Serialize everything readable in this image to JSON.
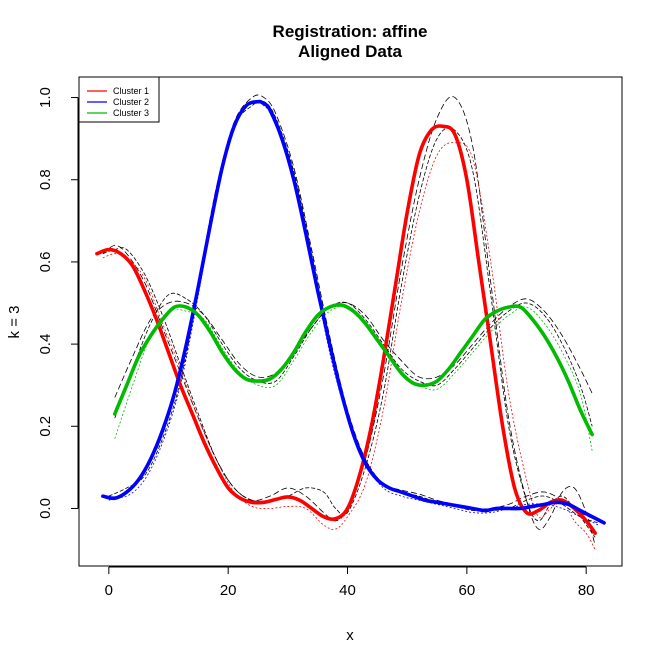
{
  "chart_data": {
    "type": "line",
    "title": "Registration: affine",
    "subtitle": "Aligned Data",
    "xlabel": "x",
    "ylabel": "k = 3",
    "xlim": [
      -5,
      86
    ],
    "ylim": [
      -0.14,
      1.05
    ],
    "xticks": [
      0,
      20,
      40,
      60,
      80
    ],
    "yticks": [
      0.0,
      0.2,
      0.4,
      0.6,
      0.8,
      1.0
    ],
    "xtick_labels": [
      "0",
      "20",
      "40",
      "60",
      "80"
    ],
    "ytick_labels": [
      "0.0",
      "0.2",
      "0.4",
      "0.6",
      "0.8",
      "1.0"
    ],
    "grid": false,
    "legend_position": "top-left",
    "series": [
      {
        "name": "Cluster 1",
        "color": "#ff0000",
        "mean": {
          "x": [
            -2,
            0,
            2,
            4,
            6,
            8,
            10,
            12,
            14,
            16,
            18,
            20,
            22,
            24,
            26,
            28,
            30,
            32,
            34,
            36,
            38,
            40,
            42,
            44,
            46,
            48,
            50,
            52,
            54,
            56,
            58,
            60,
            62,
            64,
            66,
            68,
            70,
            72,
            74,
            76,
            78,
            80,
            81.5
          ],
          "y": [
            0.62,
            0.63,
            0.62,
            0.59,
            0.53,
            0.46,
            0.38,
            0.3,
            0.23,
            0.16,
            0.1,
            0.05,
            0.025,
            0.015,
            0.015,
            0.022,
            0.028,
            0.02,
            0.0,
            -0.02,
            -0.025,
            0.0,
            0.08,
            0.2,
            0.36,
            0.54,
            0.72,
            0.86,
            0.92,
            0.93,
            0.91,
            0.8,
            0.6,
            0.4,
            0.2,
            0.05,
            -0.01,
            -0.005,
            0.015,
            0.02,
            0.0,
            -0.03,
            -0.06
          ]
        },
        "members": [
          {
            "x": [
              -1,
              1,
              3,
              6,
              9,
              12,
              15,
              18,
              21,
              24,
              27,
              30,
              33,
              36,
              38,
              40,
              43,
              46,
              49,
              52,
              55,
              58,
              61,
              64,
              67,
              70,
              72,
              74,
              76,
              78,
              80,
              81.5
            ],
            "y": [
              0.62,
              0.64,
              0.62,
              0.55,
              0.44,
              0.33,
              0.22,
              0.12,
              0.05,
              0.02,
              0.03,
              0.05,
              0.03,
              -0.01,
              -0.03,
              0.0,
              0.12,
              0.32,
              0.58,
              0.8,
              0.95,
              1.0,
              0.88,
              0.55,
              0.22,
              0.02,
              -0.05,
              -0.02,
              0.04,
              0.05,
              -0.01,
              -0.09
            ]
          },
          {
            "x": [
              -1,
              1,
              3,
              6,
              9,
              12,
              15,
              18,
              21,
              24,
              27,
              30,
              33,
              36,
              38,
              40,
              43,
              46,
              49,
              52,
              55,
              58,
              61,
              64,
              67,
              70,
              72,
              74,
              76,
              78,
              80,
              81.5
            ],
            "y": [
              0.61,
              0.62,
              0.61,
              0.56,
              0.45,
              0.34,
              0.22,
              0.12,
              0.04,
              0.005,
              0.0,
              0.005,
              0.0,
              -0.04,
              -0.05,
              -0.02,
              0.06,
              0.24,
              0.5,
              0.72,
              0.86,
              0.89,
              0.85,
              0.6,
              0.28,
              0.07,
              -0.02,
              0.0,
              0.02,
              -0.03,
              -0.06,
              -0.1
            ]
          },
          {
            "x": [
              -1,
              1,
              3,
              6,
              9,
              12,
              15,
              18,
              21,
              24,
              27,
              30,
              33,
              36,
              38,
              40,
              43,
              46,
              49,
              52,
              55,
              58,
              61,
              64,
              67,
              70,
              72,
              74,
              76,
              78,
              80,
              81.5
            ],
            "y": [
              0.62,
              0.63,
              0.63,
              0.57,
              0.47,
              0.35,
              0.23,
              0.12,
              0.05,
              0.02,
              0.02,
              0.03,
              0.05,
              0.04,
              0.0,
              -0.01,
              0.1,
              0.28,
              0.54,
              0.76,
              0.9,
              0.92,
              0.82,
              0.52,
              0.2,
              0.02,
              -0.03,
              0.01,
              0.03,
              0.0,
              -0.04,
              -0.07
            ]
          }
        ]
      },
      {
        "name": "Cluster 2",
        "color": "#0000ff",
        "mean": {
          "x": [
            -1,
            1,
            3,
            5,
            7,
            9,
            11,
            13,
            15,
            17,
            19,
            21,
            23,
            25,
            26,
            27,
            29,
            31,
            33,
            35,
            37,
            39,
            41,
            43,
            45,
            47,
            49,
            51,
            53,
            55,
            57,
            59,
            61,
            63,
            65,
            67,
            69,
            71,
            73,
            75,
            77,
            79,
            81,
            83
          ],
          "y": [
            0.03,
            0.025,
            0.04,
            0.07,
            0.12,
            0.19,
            0.28,
            0.4,
            0.54,
            0.69,
            0.83,
            0.93,
            0.98,
            0.99,
            0.985,
            0.97,
            0.9,
            0.8,
            0.67,
            0.53,
            0.4,
            0.28,
            0.18,
            0.11,
            0.07,
            0.05,
            0.04,
            0.03,
            0.02,
            0.015,
            0.01,
            0.005,
            0.0,
            -0.005,
            0.0,
            0.0,
            0.0,
            0.005,
            0.01,
            0.015,
            0.01,
            -0.005,
            -0.02,
            -0.035
          ]
        },
        "members": [
          {
            "x": [
              0,
              3,
              6,
              9,
              12,
              15,
              18,
              21,
              24,
              26,
              28,
              31,
              34,
              37,
              40,
              43,
              46,
              49,
              52,
              55,
              58,
              61,
              64,
              67,
              70,
              73,
              76,
              79,
              82
            ],
            "y": [
              0.02,
              0.04,
              0.09,
              0.18,
              0.33,
              0.55,
              0.78,
              0.94,
              1.0,
              1.0,
              0.96,
              0.83,
              0.63,
              0.42,
              0.24,
              0.12,
              0.06,
              0.045,
              0.035,
              0.02,
              0.01,
              0.0,
              0.0,
              0.01,
              0.03,
              0.04,
              0.02,
              -0.01,
              -0.03
            ]
          },
          {
            "x": [
              0,
              3,
              6,
              9,
              12,
              15,
              18,
              21,
              24,
              26,
              28,
              31,
              34,
              37,
              40,
              43,
              46,
              49,
              52,
              55,
              58,
              61,
              64,
              67,
              70,
              73,
              76,
              79,
              82
            ],
            "y": [
              0.03,
              0.03,
              0.07,
              0.16,
              0.3,
              0.52,
              0.76,
              0.93,
              0.99,
              0.98,
              0.94,
              0.8,
              0.6,
              0.38,
              0.22,
              0.11,
              0.05,
              0.03,
              0.02,
              0.01,
              0.0,
              -0.01,
              -0.01,
              0.0,
              0.01,
              0.01,
              0.0,
              -0.02,
              -0.04
            ]
          },
          {
            "x": [
              0,
              3,
              6,
              9,
              12,
              15,
              18,
              21,
              24,
              26,
              28,
              31,
              34,
              37,
              40,
              43,
              46,
              49,
              52,
              55,
              58,
              61,
              64,
              67,
              70,
              73,
              76,
              79,
              82
            ],
            "y": [
              0.03,
              0.05,
              0.08,
              0.17,
              0.31,
              0.53,
              0.77,
              0.93,
              0.98,
              0.99,
              0.95,
              0.82,
              0.62,
              0.4,
              0.23,
              0.12,
              0.06,
              0.04,
              0.03,
              0.015,
              0.005,
              -0.005,
              -0.005,
              0.0,
              0.02,
              0.03,
              0.01,
              -0.02,
              -0.035
            ]
          }
        ]
      },
      {
        "name": "Cluster 3",
        "color": "#00bb00",
        "mean": {
          "x": [
            1,
            3,
            5,
            7,
            9,
            11,
            13,
            15,
            17,
            19,
            21,
            23,
            25,
            27,
            29,
            31,
            33,
            35,
            37,
            39,
            41,
            43,
            45,
            47,
            49,
            51,
            53,
            55,
            57,
            59,
            61,
            63,
            65,
            67,
            69,
            71,
            73,
            75,
            77,
            79,
            81
          ],
          "y": [
            0.23,
            0.3,
            0.37,
            0.42,
            0.46,
            0.49,
            0.49,
            0.47,
            0.43,
            0.38,
            0.34,
            0.315,
            0.31,
            0.315,
            0.34,
            0.38,
            0.43,
            0.47,
            0.49,
            0.495,
            0.48,
            0.45,
            0.41,
            0.37,
            0.33,
            0.305,
            0.3,
            0.31,
            0.34,
            0.38,
            0.42,
            0.46,
            0.48,
            0.49,
            0.49,
            0.46,
            0.42,
            0.37,
            0.31,
            0.24,
            0.18
          ]
        },
        "members": [
          {
            "x": [
              1,
              4,
              7,
              10,
              13,
              16,
              19,
              22,
              25,
              28,
              31,
              34,
              37,
              40,
              43,
              46,
              49,
              52,
              55,
              58,
              61,
              64,
              67,
              70,
              73,
              76,
              79,
              81
            ],
            "y": [
              0.27,
              0.37,
              0.46,
              0.5,
              0.5,
              0.47,
              0.41,
              0.35,
              0.32,
              0.33,
              0.38,
              0.44,
              0.49,
              0.5,
              0.47,
              0.41,
              0.36,
              0.32,
              0.32,
              0.35,
              0.4,
              0.45,
              0.49,
              0.51,
              0.48,
              0.42,
              0.34,
              0.28
            ]
          },
          {
            "x": [
              1,
              4,
              7,
              10,
              13,
              16,
              19,
              22,
              25,
              28,
              31,
              34,
              37,
              40,
              43,
              46,
              49,
              52,
              55,
              58,
              61,
              64,
              67,
              70,
              73,
              76,
              79,
              81
            ],
            "y": [
              0.17,
              0.3,
              0.42,
              0.48,
              0.48,
              0.46,
              0.39,
              0.33,
              0.3,
              0.3,
              0.36,
              0.43,
              0.48,
              0.49,
              0.45,
              0.39,
              0.33,
              0.3,
              0.29,
              0.33,
              0.38,
              0.43,
              0.47,
              0.49,
              0.45,
              0.38,
              0.28,
              0.14
            ]
          },
          {
            "x": [
              1,
              4,
              7,
              10,
              13,
              16,
              19,
              22,
              25,
              28,
              31,
              34,
              37,
              40,
              43,
              46,
              49,
              52,
              55,
              58,
              61,
              64,
              67,
              70,
              73,
              76,
              79,
              81
            ],
            "y": [
              0.22,
              0.34,
              0.45,
              0.52,
              0.51,
              0.47,
              0.4,
              0.34,
              0.31,
              0.31,
              0.37,
              0.44,
              0.49,
              0.5,
              0.46,
              0.4,
              0.34,
              0.31,
              0.3,
              0.34,
              0.39,
              0.44,
              0.48,
              0.5,
              0.47,
              0.4,
              0.3,
              0.2
            ]
          }
        ]
      }
    ]
  }
}
